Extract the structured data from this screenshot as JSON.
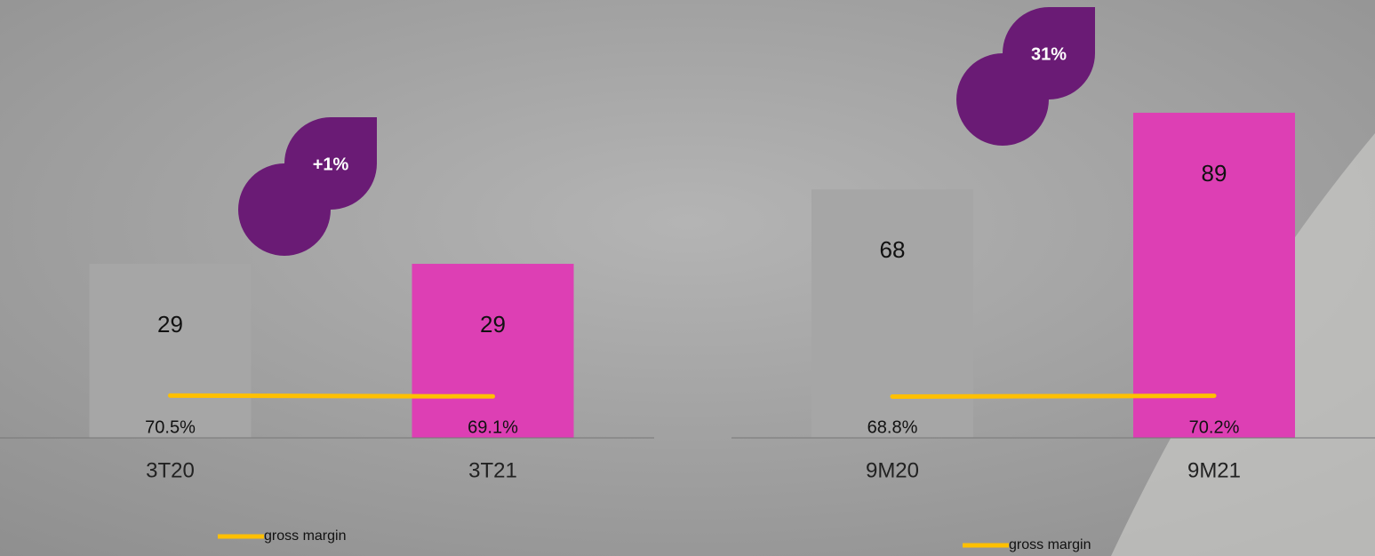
{
  "chart_data": [
    {
      "type": "bar",
      "categories": [
        "3T20",
        "3T21"
      ],
      "values": [
        29,
        29
      ],
      "colors": [
        "#a6a6a6",
        "#dd3fb4"
      ],
      "ylim": [
        0,
        70
      ],
      "y2lim": [
        0,
        700
      ],
      "line": {
        "name": "gross margin",
        "color": "#ffc000",
        "axis": "y2",
        "values": [
          70.5,
          69.1
        ],
        "value_labels": [
          "70.5%",
          "69.1%"
        ]
      },
      "annotation": "+1%"
    },
    {
      "type": "bar",
      "categories": [
        "9M20",
        "9M21"
      ],
      "values": [
        68,
        89
      ],
      "colors": [
        "#a6a6a6",
        "#dd3fb4"
      ],
      "ylim": [
        0,
        115
      ],
      "y2lim": [
        0,
        700
      ],
      "line": {
        "name": "gross margin",
        "color": "#ffc000",
        "axis": "y2",
        "values": [
          68.8,
          70.2
        ],
        "value_labels": [
          "68.8%",
          "70.2%"
        ]
      },
      "annotation": "31%"
    }
  ]
}
